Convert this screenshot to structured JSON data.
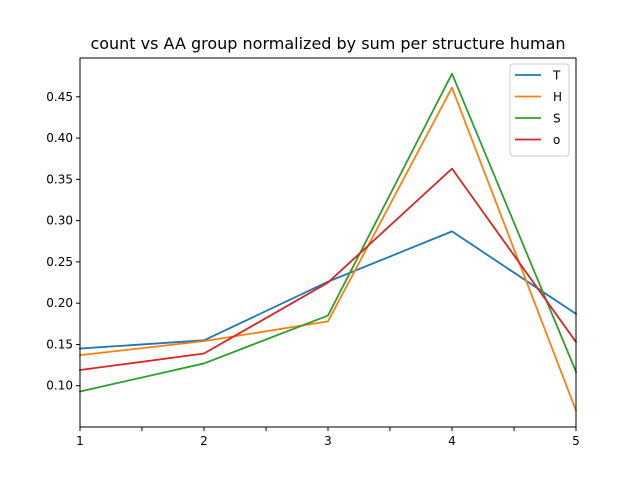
{
  "chart_data": {
    "type": "line",
    "title": "count vs AA group normalized by sum per structure human",
    "xlabel": "",
    "ylabel": "",
    "x": [
      1,
      2,
      3,
      4,
      5
    ],
    "xlim": [
      1,
      5
    ],
    "ylim": [
      0.05,
      0.497
    ],
    "x_ticks": [
      {
        "value": 1,
        "label": "1"
      },
      {
        "value": 1.5,
        "label": ""
      },
      {
        "value": 2,
        "label": "2"
      },
      {
        "value": 2.5,
        "label": ""
      },
      {
        "value": 3,
        "label": "3"
      },
      {
        "value": 3.5,
        "label": ""
      },
      {
        "value": 4,
        "label": "4"
      },
      {
        "value": 4.5,
        "label": ""
      },
      {
        "value": 5,
        "label": "5"
      }
    ],
    "y_ticks": [
      {
        "value": 0.1,
        "label": "0.10"
      },
      {
        "value": 0.15,
        "label": "0.15"
      },
      {
        "value": 0.2,
        "label": "0.20"
      },
      {
        "value": 0.25,
        "label": "0.25"
      },
      {
        "value": 0.3,
        "label": "0.30"
      },
      {
        "value": 0.35,
        "label": "0.35"
      },
      {
        "value": 0.4,
        "label": "0.40"
      },
      {
        "value": 0.45,
        "label": "0.45"
      }
    ],
    "grid": false,
    "legend_position": "top-right",
    "series": [
      {
        "name": "T",
        "color": "#1f77b4",
        "values": [
          0.145,
          0.155,
          0.226,
          0.287,
          0.187
        ]
      },
      {
        "name": "H",
        "color": "#ff7f0e",
        "values": [
          0.137,
          0.154,
          0.178,
          0.461,
          0.07
        ]
      },
      {
        "name": "S",
        "color": "#2ca02c",
        "values": [
          0.093,
          0.127,
          0.185,
          0.478,
          0.117
        ]
      },
      {
        "name": "o",
        "color": "#d62728",
        "values": [
          0.119,
          0.139,
          0.225,
          0.363,
          0.153
        ]
      }
    ]
  }
}
